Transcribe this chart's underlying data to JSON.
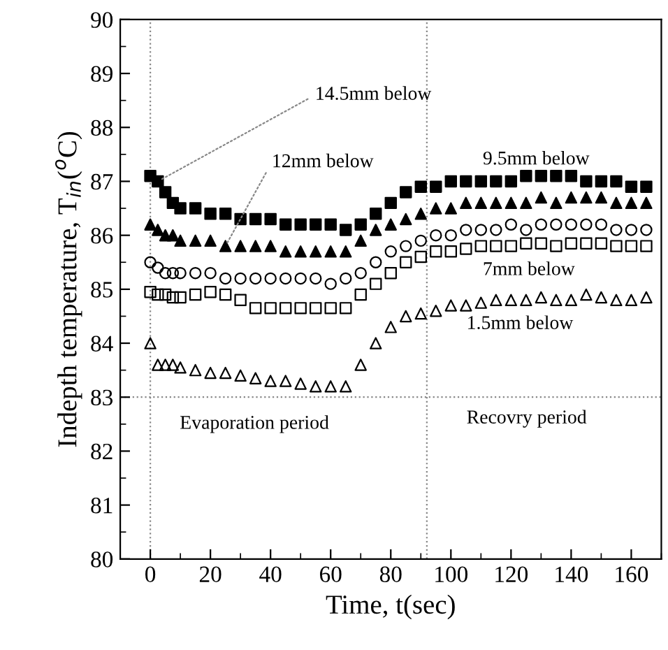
{
  "chart_data": {
    "type": "scatter",
    "xlabel": "Time, t(sec)",
    "ylabel": "Indepth temperature, T$_{in}$($^{o}$C)",
    "x": [
      0,
      2.5,
      5,
      7.5,
      10,
      15,
      20,
      25,
      30,
      35,
      40,
      45,
      50,
      55,
      60,
      65,
      70,
      75,
      80,
      85,
      90,
      95,
      100,
      105,
      110,
      115,
      120,
      125,
      130,
      135,
      140,
      145,
      150,
      155,
      160,
      165
    ],
    "series": [
      {
        "color": "#000000",
        "marker": "square",
        "values": [
          87.1,
          87.0,
          86.8,
          86.6,
          86.5,
          86.5,
          86.4,
          86.4,
          86.3,
          86.3,
          86.3,
          86.2,
          86.2,
          86.2,
          86.2,
          86.1,
          86.2,
          86.4,
          86.6,
          86.8,
          86.9,
          86.9,
          87.0,
          87.0,
          87.0,
          87.0,
          87.0,
          87.1,
          87.1,
          87.1,
          87.1,
          87.0,
          87.0,
          87.0,
          86.9,
          86.9
        ]
      },
      {
        "color": "#000000",
        "marker": "triangle",
        "values": [
          86.2,
          86.1,
          86.0,
          86.0,
          85.9,
          85.9,
          85.9,
          85.8,
          85.8,
          85.8,
          85.8,
          85.7,
          85.7,
          85.7,
          85.7,
          85.7,
          85.9,
          86.1,
          86.2,
          86.3,
          86.4,
          86.5,
          86.5,
          86.6,
          86.6,
          86.6,
          86.6,
          86.6,
          86.7,
          86.6,
          86.7,
          86.7,
          86.7,
          86.6,
          86.6,
          86.6
        ]
      },
      {
        "color": "#000000",
        "marker": "circle",
        "values": [
          85.5,
          85.4,
          85.3,
          85.3,
          85.3,
          85.3,
          85.3,
          85.2,
          85.2,
          85.2,
          85.2,
          85.2,
          85.2,
          85.2,
          85.1,
          85.2,
          85.3,
          85.5,
          85.7,
          85.8,
          85.9,
          86.0,
          86.0,
          86.1,
          86.1,
          86.1,
          86.2,
          86.1,
          86.2,
          86.2,
          86.2,
          86.2,
          86.2,
          86.1,
          86.1,
          86.1
        ]
      },
      {
        "color": "#000000",
        "marker": "square",
        "values": [
          84.95,
          84.9,
          84.9,
          84.85,
          84.85,
          84.9,
          84.95,
          84.9,
          84.8,
          84.65,
          84.65,
          84.65,
          84.65,
          84.65,
          84.65,
          84.65,
          84.9,
          85.1,
          85.3,
          85.5,
          85.6,
          85.7,
          85.7,
          85.75,
          85.8,
          85.8,
          85.8,
          85.85,
          85.85,
          85.8,
          85.85,
          85.85,
          85.85,
          85.8,
          85.8,
          85.8
        ]
      },
      {
        "color": "#000000",
        "marker": "triangle",
        "values": [
          84.0,
          83.6,
          83.6,
          83.6,
          83.55,
          83.5,
          83.45,
          83.45,
          83.4,
          83.35,
          83.3,
          83.3,
          83.25,
          83.2,
          83.2,
          83.2,
          83.6,
          84.0,
          84.3,
          84.5,
          84.55,
          84.6,
          84.7,
          84.7,
          84.75,
          84.8,
          84.8,
          84.8,
          84.85,
          84.8,
          84.8,
          84.9,
          84.85,
          84.8,
          84.8,
          84.85
        ]
      }
    ],
    "annotations": [
      {
        "text": "14.5mm below",
        "x": 2.5,
        "y": 87.0
      },
      {
        "text": "12mm below",
        "x": 25,
        "y": 85.8
      },
      "9.5mm below",
      "7mm below",
      "1.5mm below",
      "Evaporation period",
      "Recovry period"
    ],
    "ref_lines": [
      {
        "axis": "x",
        "value": 0,
        "color": "#888888",
        "line_style": "dotted"
      },
      {
        "axis": "x",
        "value": 92,
        "color": "#888888",
        "line_style": "dotted"
      },
      {
        "axis": "y",
        "value": 83,
        "color": "#888888",
        "line_style": "dotted"
      }
    ],
    "xlim": [
      -10,
      170
    ],
    "ylim": [
      80,
      90
    ],
    "xticks": [
      0,
      20,
      40,
      60,
      80,
      100,
      120,
      140,
      160
    ],
    "yticks": [
      80,
      81,
      82,
      83,
      84,
      85,
      86,
      87,
      88,
      89,
      90
    ],
    "grid": false,
    "legend": false
  }
}
